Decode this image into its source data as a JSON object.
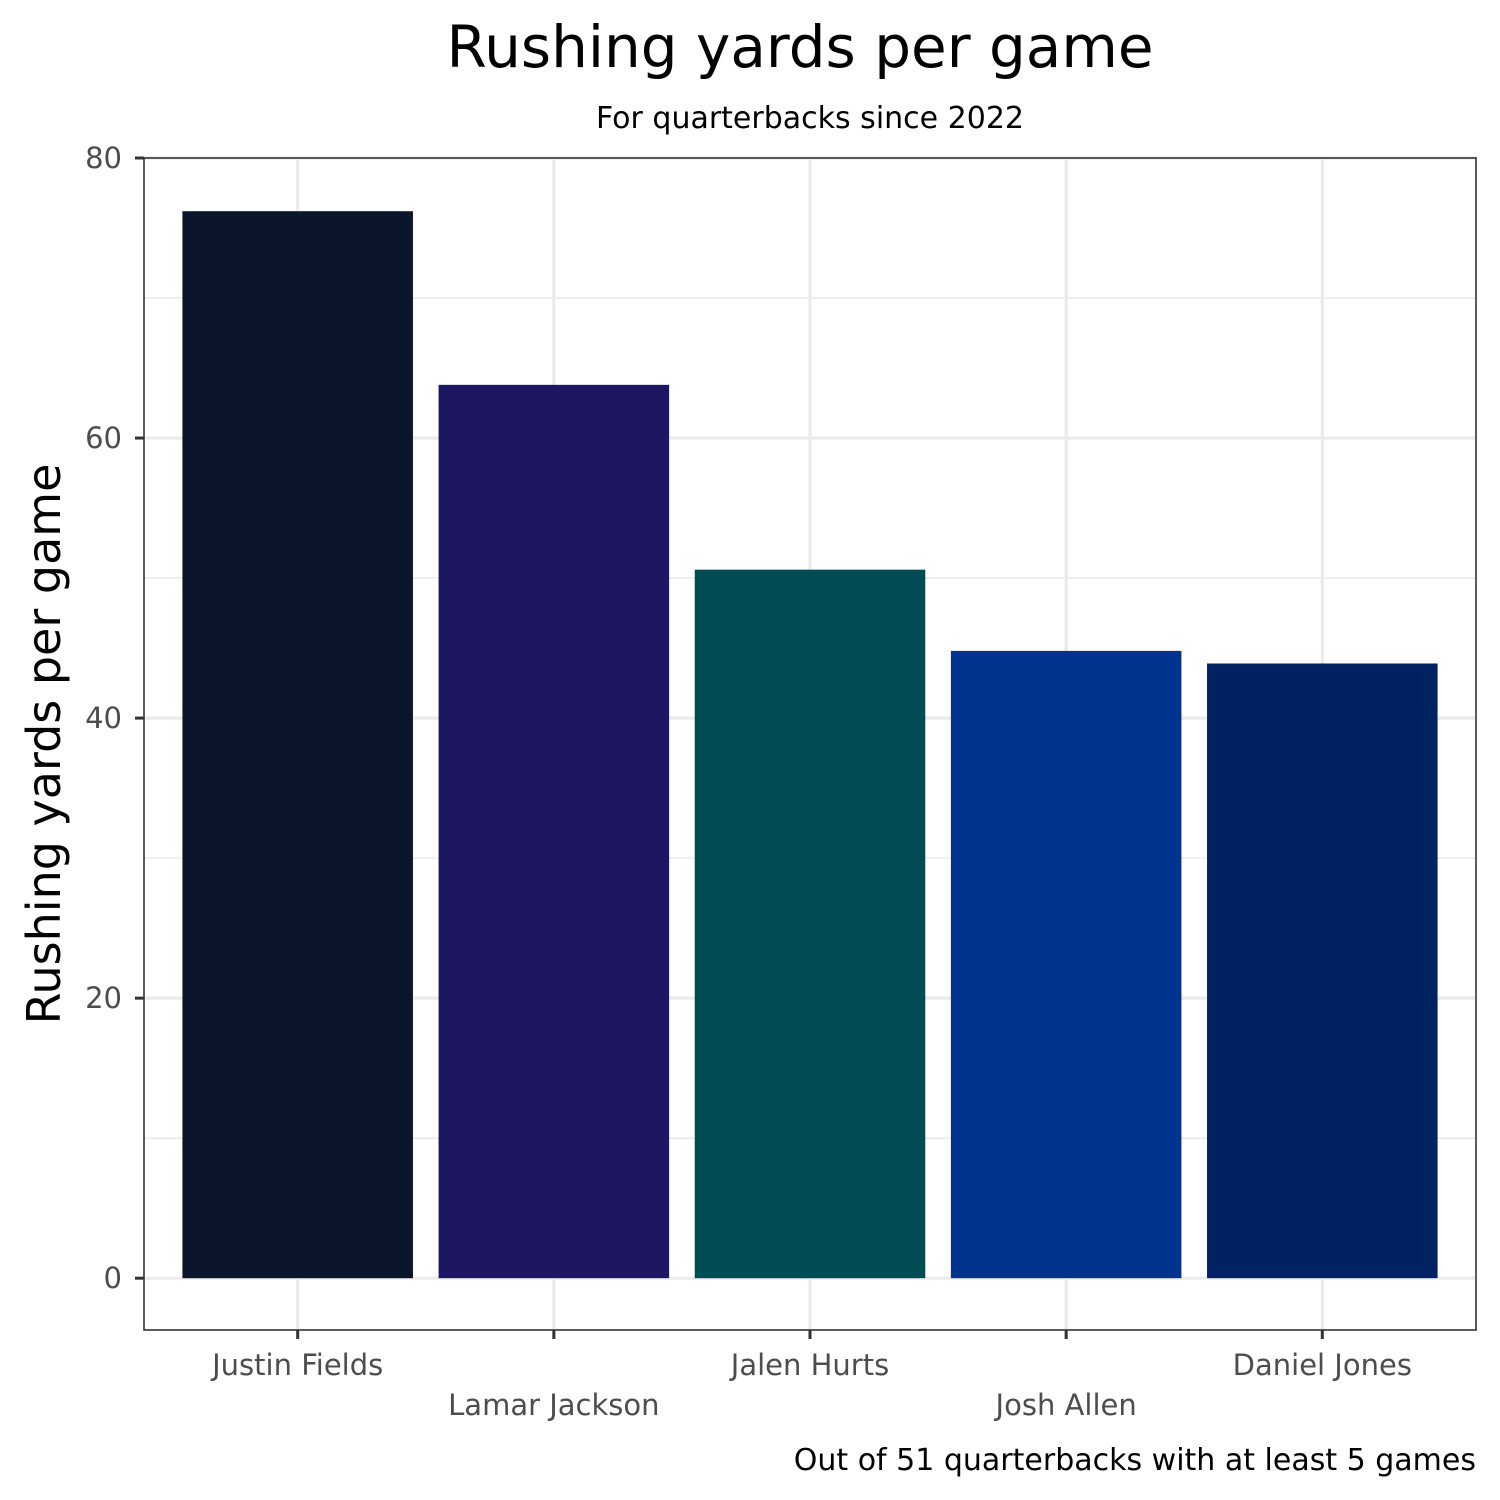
{
  "chart_data": {
    "type": "bar",
    "title": "Rushing yards per game",
    "subtitle": "For quarterbacks since 2022",
    "xlabel": "",
    "ylabel": "Rushing yards per game",
    "caption": "Out of 51 quarterbacks with at least 5 games",
    "categories": [
      "Justin Fields",
      "Lamar Jackson",
      "Jalen Hurts",
      "Josh Allen",
      "Daniel Jones"
    ],
    "values": [
      76.2,
      63.8,
      50.6,
      44.8,
      43.9
    ],
    "colors": [
      "#0b162a",
      "#1d1761",
      "#004c54",
      "#00338d",
      "#002263"
    ],
    "ylim": [
      -3.7,
      80
    ],
    "yticks": [
      0,
      20,
      40,
      60,
      80
    ],
    "grid": true,
    "legend": "none"
  }
}
